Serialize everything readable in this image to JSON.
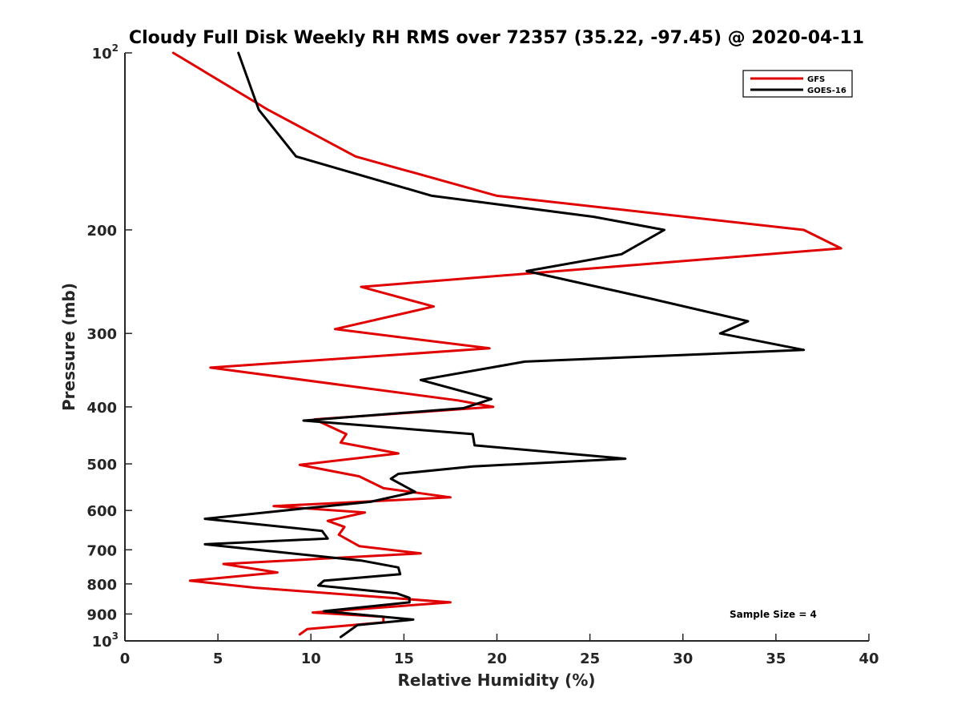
{
  "chart_data": {
    "type": "line",
    "title": "Cloudy Full Disk Weekly RH RMS over 72357 (35.22, -97.45) @ 2020-04-11",
    "xlabel": "Relative Humidity (%)",
    "ylabel": "Pressure (mb)",
    "xlim": [
      0,
      40
    ],
    "ylim": [
      100,
      1000
    ],
    "y_scale": "log",
    "y_reversed": true,
    "x_ticks": [
      "0",
      "5",
      "10",
      "15",
      "20",
      "25",
      "30",
      "35",
      "40"
    ],
    "y_ticks": [
      {
        "base": "10",
        "exp": "2",
        "value": 100
      },
      {
        "label": "200",
        "value": 200
      },
      {
        "label": "300",
        "value": 300
      },
      {
        "label": "400",
        "value": 400
      },
      {
        "label": "500",
        "value": 500
      },
      {
        "label": "600",
        "value": 600
      },
      {
        "label": "700",
        "value": 700
      },
      {
        "label": "800",
        "value": 800
      },
      {
        "label": "900",
        "value": 900
      },
      {
        "base": "10",
        "exp": "3",
        "value": 1000
      }
    ],
    "grid": false,
    "legend_position": "top-right",
    "annotation": "Sample Size = 4",
    "series": [
      {
        "name": "GFS",
        "color": "#e00000",
        "points": [
          [
            2.6,
            100
          ],
          [
            7.7,
            125
          ],
          [
            12.4,
            150
          ],
          [
            20.0,
            175
          ],
          [
            36.5,
            200
          ],
          [
            38.5,
            215
          ],
          [
            27.0,
            230
          ],
          [
            12.7,
            250
          ],
          [
            16.6,
            270
          ],
          [
            11.3,
            295
          ],
          [
            19.6,
            318
          ],
          [
            4.6,
            343
          ],
          [
            17.9,
            390
          ],
          [
            19.8,
            400
          ],
          [
            10.2,
            420
          ],
          [
            11.9,
            445
          ],
          [
            11.6,
            460
          ],
          [
            14.7,
            480
          ],
          [
            9.4,
            502
          ],
          [
            12.6,
            525
          ],
          [
            13.9,
            550
          ],
          [
            17.5,
            570
          ],
          [
            8.0,
            590
          ],
          [
            12.9,
            605
          ],
          [
            10.9,
            625
          ],
          [
            11.8,
            640
          ],
          [
            11.5,
            660
          ],
          [
            12.6,
            690
          ],
          [
            15.9,
            710
          ],
          [
            5.3,
            740
          ],
          [
            8.2,
            765
          ],
          [
            3.5,
            790
          ],
          [
            7.0,
            812
          ],
          [
            17.5,
            860
          ],
          [
            10.1,
            895
          ],
          [
            13.9,
            910
          ],
          [
            13.9,
            930
          ],
          [
            9.8,
            955
          ],
          [
            9.4,
            975
          ]
        ]
      },
      {
        "name": "GOES-16",
        "color": "#000000",
        "points": [
          [
            6.1,
            100
          ],
          [
            7.2,
            125
          ],
          [
            9.2,
            150
          ],
          [
            16.5,
            175
          ],
          [
            25.2,
            190
          ],
          [
            29.0,
            200
          ],
          [
            26.7,
            220
          ],
          [
            21.6,
            235
          ],
          [
            28.3,
            262
          ],
          [
            33.5,
            286
          ],
          [
            32.0,
            300
          ],
          [
            36.5,
            320
          ],
          [
            21.5,
            335
          ],
          [
            15.9,
            360
          ],
          [
            19.7,
            388
          ],
          [
            18.2,
            402
          ],
          [
            9.6,
            422
          ],
          [
            18.7,
            445
          ],
          [
            18.8,
            465
          ],
          [
            26.9,
            490
          ],
          [
            18.7,
            505
          ],
          [
            14.7,
            520
          ],
          [
            14.3,
            530
          ],
          [
            15.6,
            558
          ],
          [
            13.2,
            580
          ],
          [
            9.7,
            595
          ],
          [
            4.3,
            620
          ],
          [
            10.6,
            650
          ],
          [
            10.9,
            670
          ],
          [
            4.3,
            685
          ],
          [
            7.1,
            700
          ],
          [
            12.7,
            730
          ],
          [
            14.7,
            750
          ],
          [
            14.8,
            770
          ],
          [
            10.7,
            790
          ],
          [
            10.4,
            805
          ],
          [
            14.6,
            830
          ],
          [
            15.3,
            845
          ],
          [
            15.3,
            860
          ],
          [
            10.7,
            890
          ],
          [
            15.5,
            920
          ],
          [
            12.5,
            940
          ],
          [
            11.6,
            985
          ]
        ]
      }
    ]
  }
}
